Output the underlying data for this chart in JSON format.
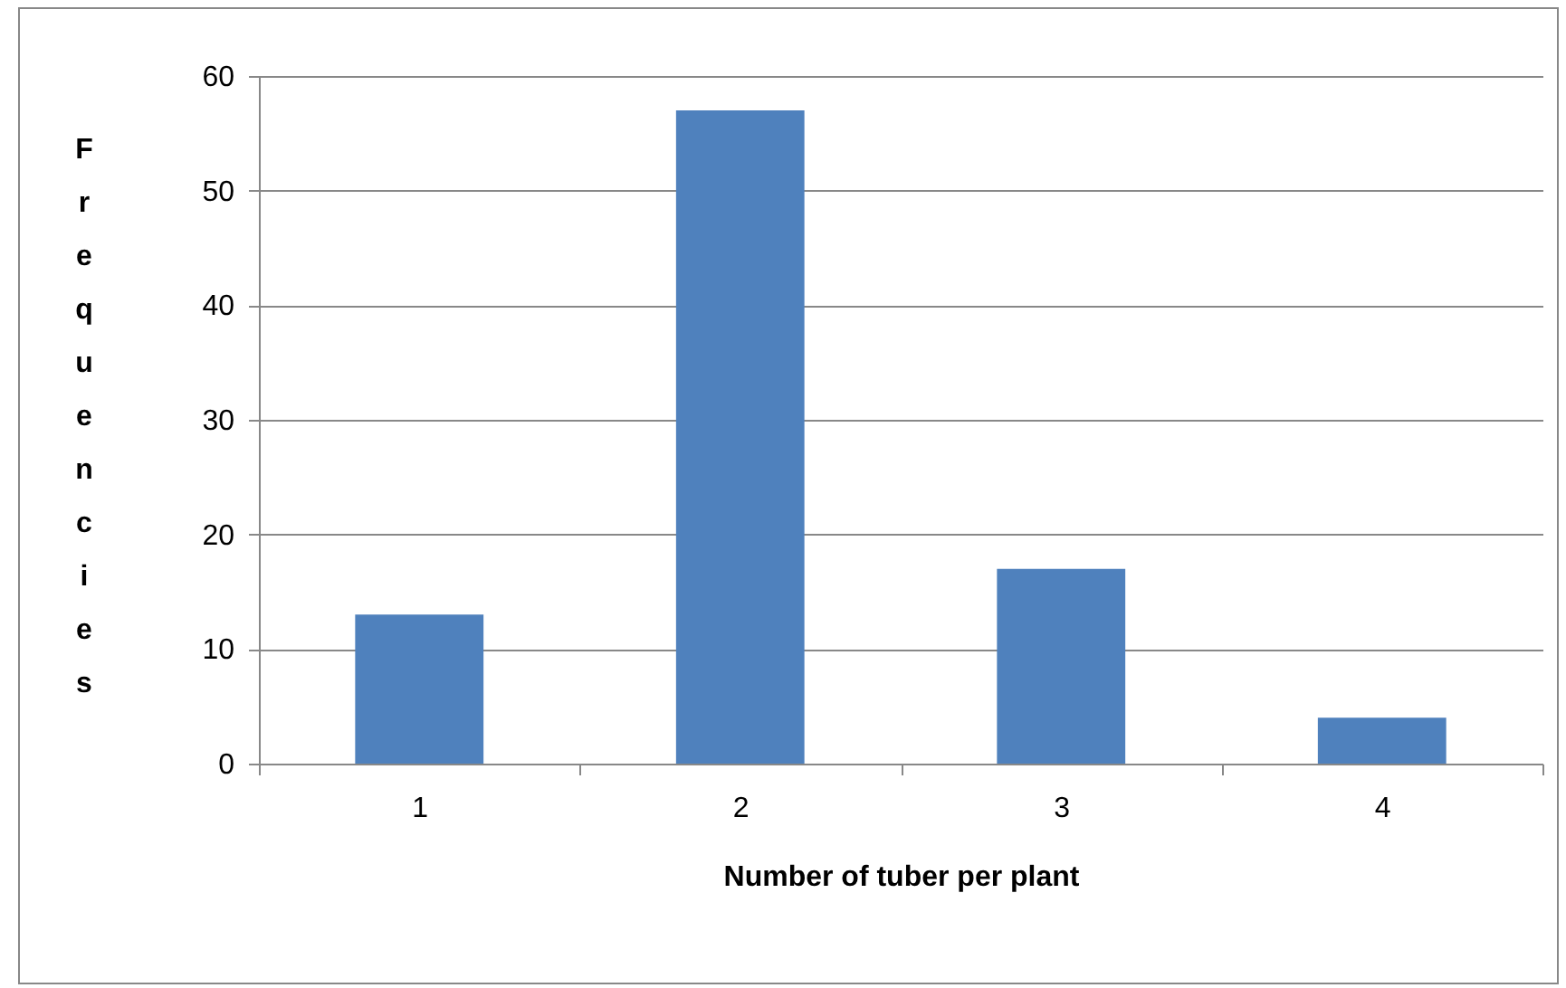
{
  "chart_data": {
    "type": "bar",
    "xlabel": "Number of tuber per plant",
    "ylabel": "Frequencies",
    "categories": [
      "1",
      "2",
      "3",
      "4"
    ],
    "values": [
      13,
      57,
      17,
      4
    ],
    "color": "#4f81bd",
    "ylim": [
      0,
      60
    ],
    "yticks": [
      0,
      10,
      20,
      30,
      40,
      50,
      60
    ],
    "grid": "y"
  }
}
